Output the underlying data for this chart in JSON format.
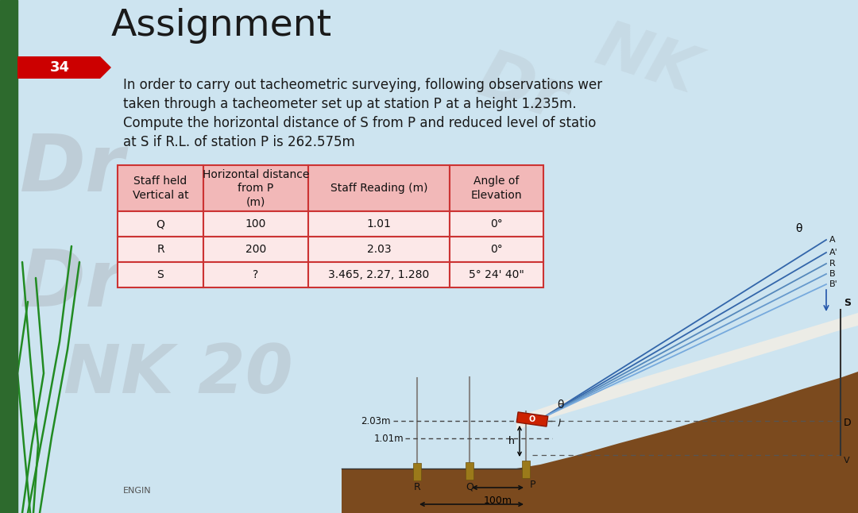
{
  "title": "Assignment",
  "slide_number": "34",
  "bg_color": "#cde4f0",
  "left_bar_color": "#2d6a2d",
  "slide_num_bg": "#cc0000",
  "slide_num_color": "#ffffff",
  "body_text_lines": [
    "In order to carry out tacheometric surveying, following observations wer",
    "taken through a tacheometer set up at station P at a height 1.235m.",
    "Compute the horizontal distance of S from P and reduced level of statio",
    "at S if R.L. of station P is 262.575m"
  ],
  "table_header": [
    "Staff held\nVertical at",
    "Horizontal distance\nfrom P\n(m)",
    "Staff Reading (m)",
    "Angle of\nElevation"
  ],
  "table_rows": [
    [
      "Q",
      "100",
      "1.01",
      "0°"
    ],
    [
      "R",
      "200",
      "2.03",
      "0°"
    ],
    [
      "S",
      "?",
      "3.465, 2.27, 1.280",
      "5° 24' 40\""
    ]
  ],
  "table_header_bg": "#f2b8b8",
  "table_row_bg": "#fce8e8",
  "table_border_color": "#cc3333",
  "ground_color": "#7b4a1e",
  "engin_text": "ENGIN"
}
